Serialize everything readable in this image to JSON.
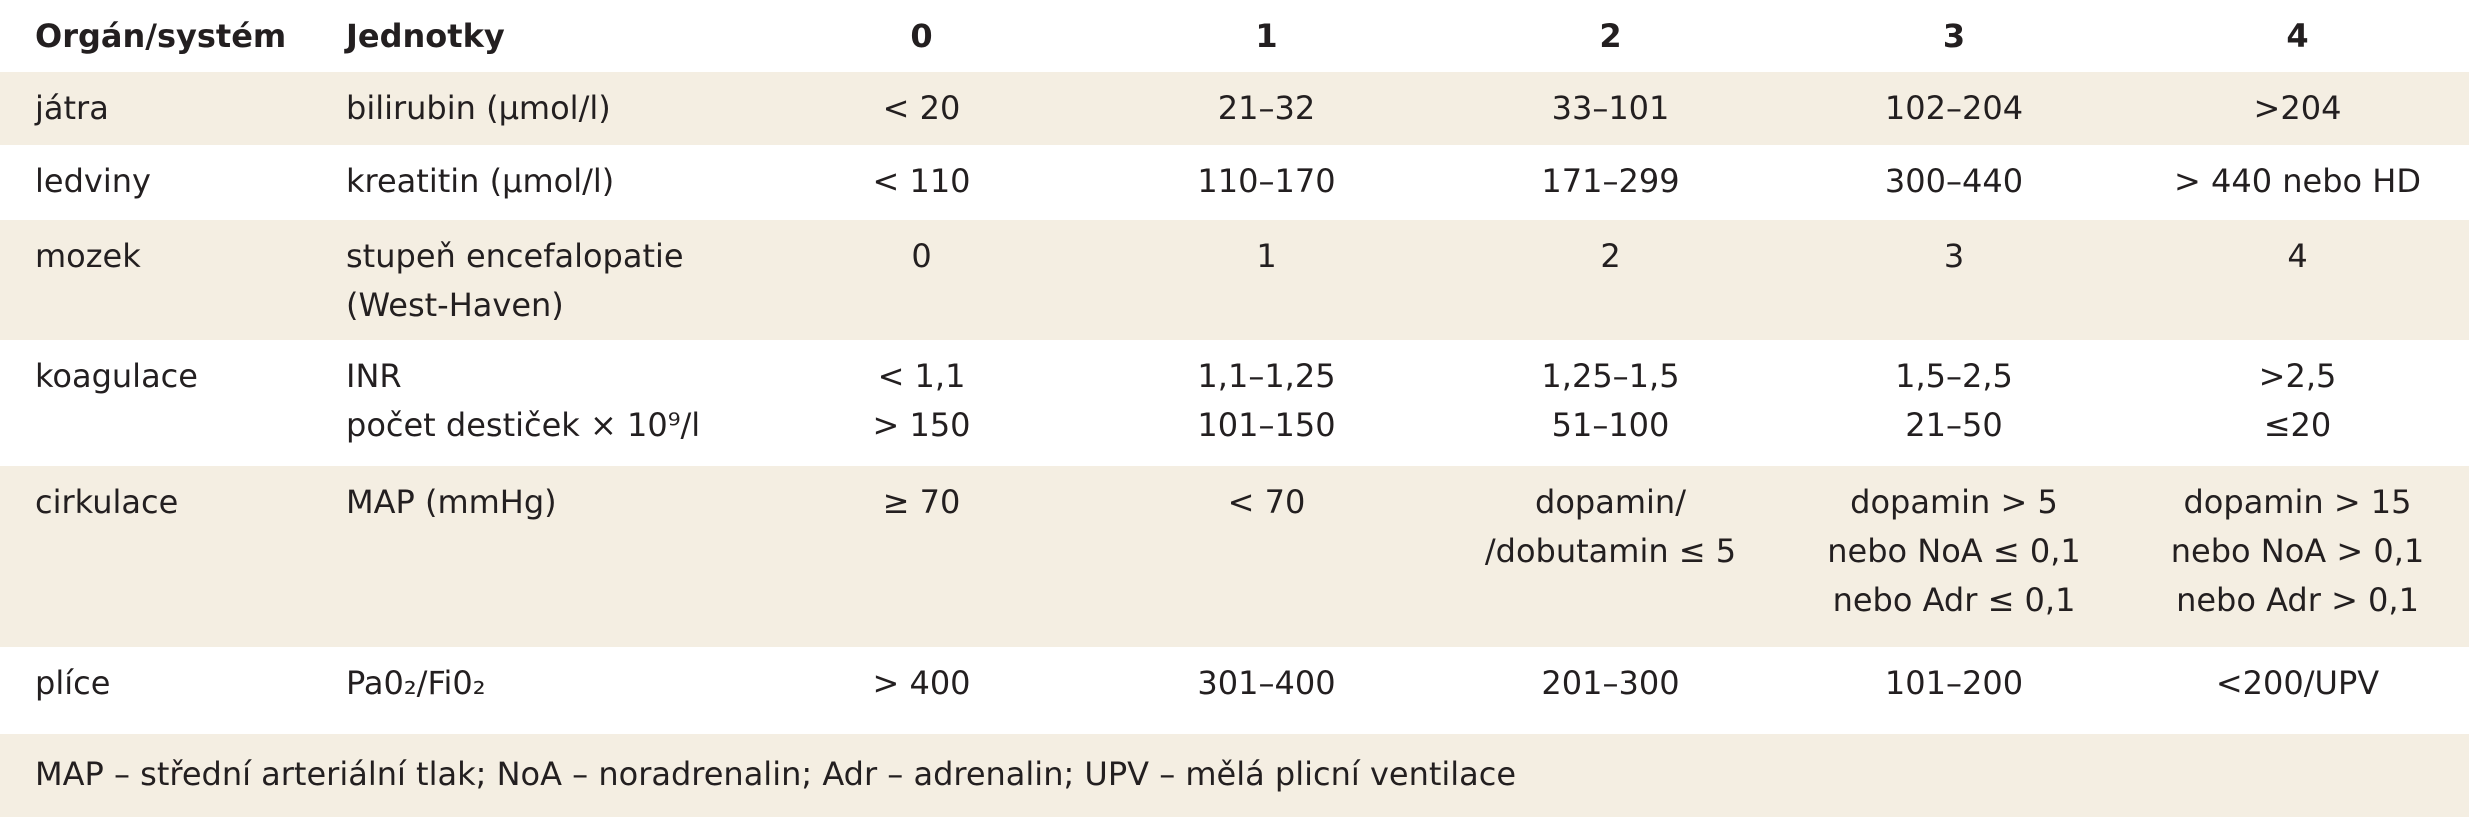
{
  "table": {
    "header": [
      "Orgán/systém",
      "Jednotky",
      "0",
      "1",
      "2",
      "3",
      "4"
    ],
    "rows": [
      [
        [
          "játra"
        ],
        [
          "bilirubin (µmol/l)"
        ],
        [
          "< 20"
        ],
        [
          "21–32"
        ],
        [
          "33–101"
        ],
        [
          "102–204"
        ],
        [
          ">204"
        ]
      ],
      [
        [
          "ledviny"
        ],
        [
          "kreatitin (µmol/l)"
        ],
        [
          "< 110"
        ],
        [
          "110–170"
        ],
        [
          "171–299"
        ],
        [
          "300–440"
        ],
        [
          "> 440 nebo HD"
        ]
      ],
      [
        [
          "mozek"
        ],
        [
          "stupeň encefalopatie",
          "(West-Haven)"
        ],
        [
          "0"
        ],
        [
          "1"
        ],
        [
          "2"
        ],
        [
          "3"
        ],
        [
          "4"
        ]
      ],
      [
        [
          "koagulace"
        ],
        [
          "INR",
          "počet destiček × 10⁹/l"
        ],
        [
          "< 1,1",
          "> 150"
        ],
        [
          "1,1–1,25",
          "101–150"
        ],
        [
          "1,25–1,5",
          "51–100"
        ],
        [
          "1,5–2,5",
          "21–50"
        ],
        [
          ">2,5",
          "≤20"
        ]
      ],
      [
        [
          "cirkulace"
        ],
        [
          "MAP (mmHg)"
        ],
        [
          "≥ 70"
        ],
        [
          "< 70"
        ],
        [
          "dopamin/",
          "/dobutamin ≤ 5"
        ],
        [
          "dopamin > 5",
          "nebo NoA ≤ 0,1",
          "nebo Adr ≤ 0,1"
        ],
        [
          "dopamin > 15",
          "nebo NoA > 0,1",
          "nebo Adr > 0,1"
        ]
      ],
      [
        [
          "plíce"
        ],
        [
          "Pa0₂/Fi0₂"
        ],
        [
          "> 400"
        ],
        [
          "301–400"
        ],
        [
          "201–300"
        ],
        [
          "101–200"
        ],
        [
          "<200/UPV"
        ]
      ]
    ],
    "note": "MAP – střední arteriální tlak; NoA – noradrenalin; Adr – adrenalin; UPV –  mělá plicní ventilace"
  }
}
